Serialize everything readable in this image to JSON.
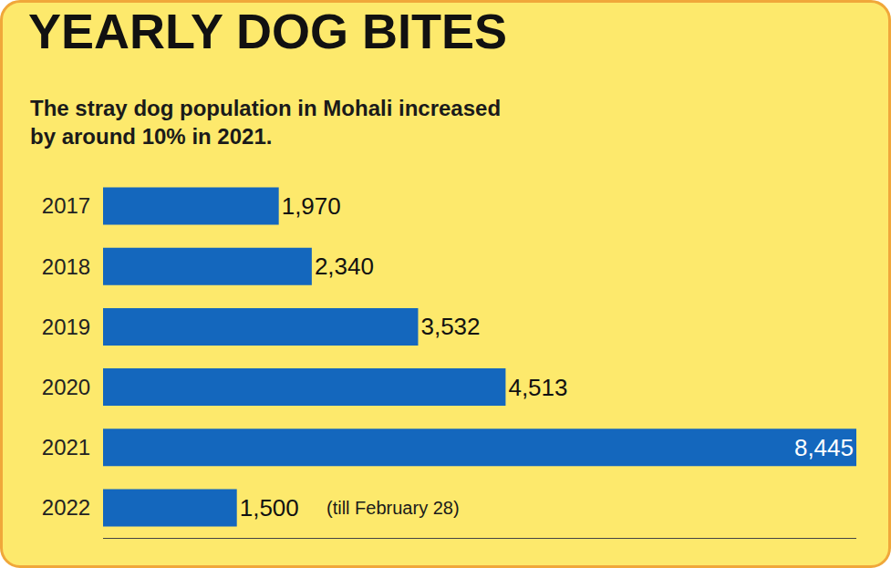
{
  "chart_data": {
    "type": "bar",
    "title": "YEARLY DOG BITES",
    "subtitle": "The stray dog population in Mohali increased by around 10% in 2021.",
    "orientation": "horizontal",
    "categories": [
      "2017",
      "2018",
      "2019",
      "2020",
      "2021",
      "2022"
    ],
    "values": [
      1970,
      2340,
      3532,
      4513,
      8445,
      1500
    ],
    "value_labels": [
      "1,970",
      "2,340",
      "3,532",
      "4,513",
      "8,445",
      "1,500"
    ],
    "color": "#1467bd",
    "data_labels": true,
    "tick_labels": "y",
    "grid": false,
    "xlim": [
      0,
      8445
    ],
    "xticks": [],
    "annotations": [
      {
        "text": "(till February 28)",
        "category": "2022"
      }
    ]
  }
}
